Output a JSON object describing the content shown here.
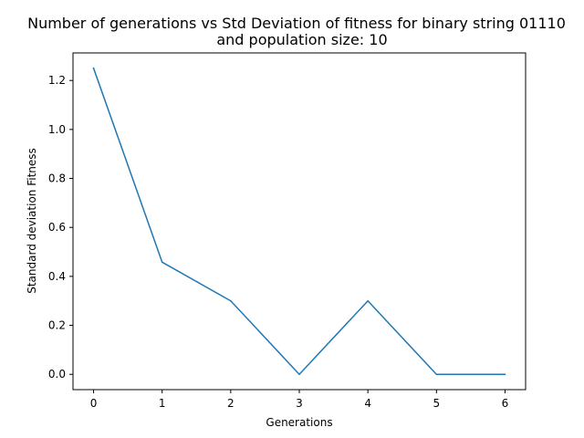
{
  "chart_data": {
    "type": "line",
    "title_lines": [
      "Number of generations vs Std Deviation of fitness for binary string 01110",
      "and population size: 10"
    ],
    "xlabel": "Generations",
    "ylabel": "Standard deviation Fitness",
    "x": [
      0,
      1,
      2,
      3,
      4,
      5,
      6
    ],
    "series": [
      {
        "values": [
          1.25,
          0.458,
          0.3,
          0.0,
          0.3,
          0.0,
          0.0
        ],
        "color": "#1f77b4"
      }
    ],
    "xticks": [
      0,
      1,
      2,
      3,
      4,
      5,
      6
    ],
    "xtick_labels": [
      "0",
      "1",
      "2",
      "3",
      "4",
      "5",
      "6"
    ],
    "yticks": [
      0.0,
      0.2,
      0.4,
      0.6,
      0.8,
      1.0,
      1.2
    ],
    "ytick_labels": [
      "0.0",
      "0.2",
      "0.4",
      "0.6",
      "0.8",
      "1.0",
      "1.2"
    ],
    "xlim": [
      -0.3,
      6.3
    ],
    "ylim": [
      -0.0625,
      1.3125
    ],
    "grid": false,
    "legend": "none"
  }
}
